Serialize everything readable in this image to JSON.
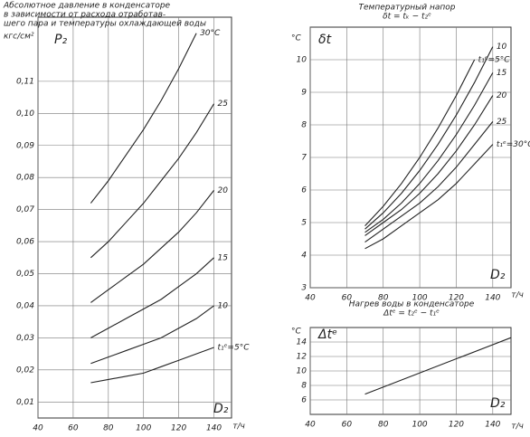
{
  "chart_data": [
    {
      "type": "line",
      "title": [
        "Абсолютное давление в конденсаторе",
        "в зависимости от расхода отработав-",
        "шего пара и температуры охлаждающей воды"
      ],
      "y_unit": "кгс/см²",
      "y_label": "P₂",
      "x_label": "D₂",
      "x_unit": "т/ч",
      "x": [
        70,
        80,
        90,
        100,
        110,
        120,
        130,
        140
      ],
      "series": [
        {
          "name": "t₁ᵉ=5°C",
          "color": "#222",
          "values": [
            0.016,
            0.017,
            0.018,
            0.019,
            0.021,
            0.023,
            0.025,
            0.027
          ]
        },
        {
          "name": "10",
          "color": "#222",
          "values": [
            0.022,
            0.024,
            0.026,
            0.028,
            0.03,
            0.033,
            0.036,
            0.04
          ]
        },
        {
          "name": "15",
          "color": "#222",
          "values": [
            0.03,
            0.033,
            0.036,
            0.039,
            0.042,
            0.046,
            0.05,
            0.055
          ]
        },
        {
          "name": "20",
          "color": "#222",
          "values": [
            0.041,
            0.045,
            0.049,
            0.053,
            0.058,
            0.063,
            0.069,
            0.076
          ]
        },
        {
          "name": "25",
          "color": "#222",
          "values": [
            0.055,
            0.06,
            0.066,
            0.072,
            0.079,
            0.086,
            0.094,
            0.103
          ]
        },
        {
          "name": "30°C",
          "color": "#222",
          "values": [
            0.072,
            0.079,
            0.087,
            0.095,
            0.104,
            0.114,
            0.125,
            null
          ]
        }
      ],
      "xlim": [
        40,
        150
      ],
      "xticks": [
        40,
        60,
        80,
        100,
        120,
        140
      ],
      "ylim": [
        0.005,
        0.13
      ],
      "yticks": [
        {
          "value": 0.01,
          "label": "0,01"
        },
        {
          "value": 0.02,
          "label": "0,02"
        },
        {
          "value": 0.03,
          "label": "0,03"
        },
        {
          "value": 0.04,
          "label": "0,04"
        },
        {
          "value": 0.05,
          "label": "0,05"
        },
        {
          "value": 0.06,
          "label": "0,06"
        },
        {
          "value": 0.07,
          "label": "0,07"
        },
        {
          "value": 0.08,
          "label": "0,08"
        },
        {
          "value": 0.09,
          "label": "0,09"
        },
        {
          "value": 0.1,
          "label": "0,10"
        },
        {
          "value": 0.11,
          "label": "0,11"
        }
      ],
      "grid": true
    },
    {
      "type": "line",
      "title": [
        "Температурный напор",
        "δt = tₖ − t₂ᵉ"
      ],
      "y_unit": "°C",
      "y_label": "δt",
      "x_label": "D₂",
      "x_unit": "т/ч",
      "x": [
        70,
        80,
        90,
        100,
        110,
        120,
        130,
        140
      ],
      "series": [
        {
          "name": "t₁ᵉ=5°C",
          "color": "#222",
          "values": [
            4.9,
            5.5,
            6.2,
            7.0,
            7.9,
            8.9,
            10.0,
            null
          ]
        },
        {
          "name": "10",
          "color": "#222",
          "values": [
            4.8,
            5.3,
            5.9,
            6.6,
            7.4,
            8.3,
            9.3,
            10.4
          ]
        },
        {
          "name": "15",
          "color": "#222",
          "values": [
            4.7,
            5.1,
            5.6,
            6.2,
            6.9,
            7.7,
            8.6,
            9.6
          ]
        },
        {
          "name": "20",
          "color": "#222",
          "values": [
            4.6,
            5.0,
            5.4,
            5.9,
            6.5,
            7.2,
            8.0,
            8.9
          ]
        },
        {
          "name": "25",
          "color": "#222",
          "values": [
            4.4,
            4.8,
            5.2,
            5.6,
            6.1,
            6.7,
            7.4,
            8.1
          ]
        },
        {
          "name": "t₁ᵉ=30°C",
          "color": "#222",
          "values": [
            4.2,
            4.5,
            4.9,
            5.3,
            5.7,
            6.2,
            6.8,
            7.4
          ]
        }
      ],
      "xlim": [
        40,
        150
      ],
      "xticks": [
        40,
        60,
        80,
        100,
        120,
        140
      ],
      "ylim": [
        3,
        11
      ],
      "yticks": [
        3,
        4,
        5,
        6,
        7,
        8,
        9,
        10
      ],
      "grid": true
    },
    {
      "type": "line",
      "title": [
        "Нагрев воды в конденсаторе",
        "Δtᵉ = t₂ᵉ − t₁ᵉ"
      ],
      "y_unit": "°C",
      "y_label": "Δtᵉ",
      "x_label": "D₂",
      "x_unit": "т/ч",
      "x": [
        70,
        150
      ],
      "values": [
        6.8,
        14.6
      ],
      "color": "#222",
      "xlim": [
        40,
        150
      ],
      "xticks": [
        40,
        60,
        80,
        100,
        120,
        140
      ],
      "ylim": [
        4,
        16
      ],
      "yticks": [
        6,
        8,
        10,
        12,
        14
      ],
      "grid": true
    }
  ]
}
